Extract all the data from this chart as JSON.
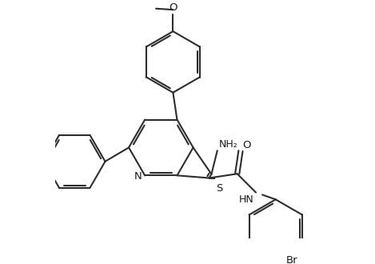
{
  "background_color": "#ffffff",
  "line_color": "#2d2d2d",
  "line_width": 1.5,
  "text_color": "#1a1a1a",
  "figsize": [
    4.69,
    3.3
  ],
  "dpi": 100,
  "xlim": [
    -2.8,
    4.2
  ],
  "ylim": [
    -2.4,
    3.8
  ]
}
